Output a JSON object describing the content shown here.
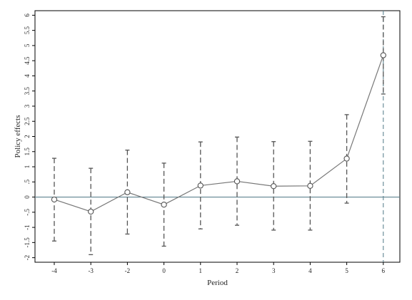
{
  "chart_data": {
    "type": "line",
    "xlabel": "Period",
    "ylabel": "Policy effects",
    "categories": [
      "-4",
      "-3",
      "-2",
      "0",
      "1",
      "2",
      "3",
      "4",
      "5",
      "6"
    ],
    "series": [
      {
        "values": [
          -0.08,
          -0.48,
          0.16,
          -0.25,
          0.38,
          0.52,
          0.36,
          0.37,
          1.27,
          4.68
        ],
        "ci_lower": [
          -1.45,
          -1.9,
          -1.22,
          -1.62,
          -1.05,
          -0.93,
          -1.09,
          -1.09,
          -0.2,
          3.4
        ],
        "ci_upper": [
          1.28,
          0.95,
          1.55,
          1.12,
          1.82,
          1.98,
          1.83,
          1.84,
          2.72,
          5.95
        ]
      }
    ],
    "yticks": [
      "-2",
      "-1.5",
      "-1",
      "-.5",
      "0",
      ".5",
      "1",
      "1.5",
      "2",
      "2.5",
      "3",
      "3.5",
      "4",
      "4.5",
      "5",
      "5.5",
      "6"
    ],
    "ylim": [
      -2.15,
      6.15
    ],
    "reference_line_y": 0,
    "reference_line_x": "6",
    "grid": false,
    "colors": {
      "line": "#777777",
      "ci": "#555555",
      "reference": "#5f8390",
      "frame": "#000000"
    }
  }
}
